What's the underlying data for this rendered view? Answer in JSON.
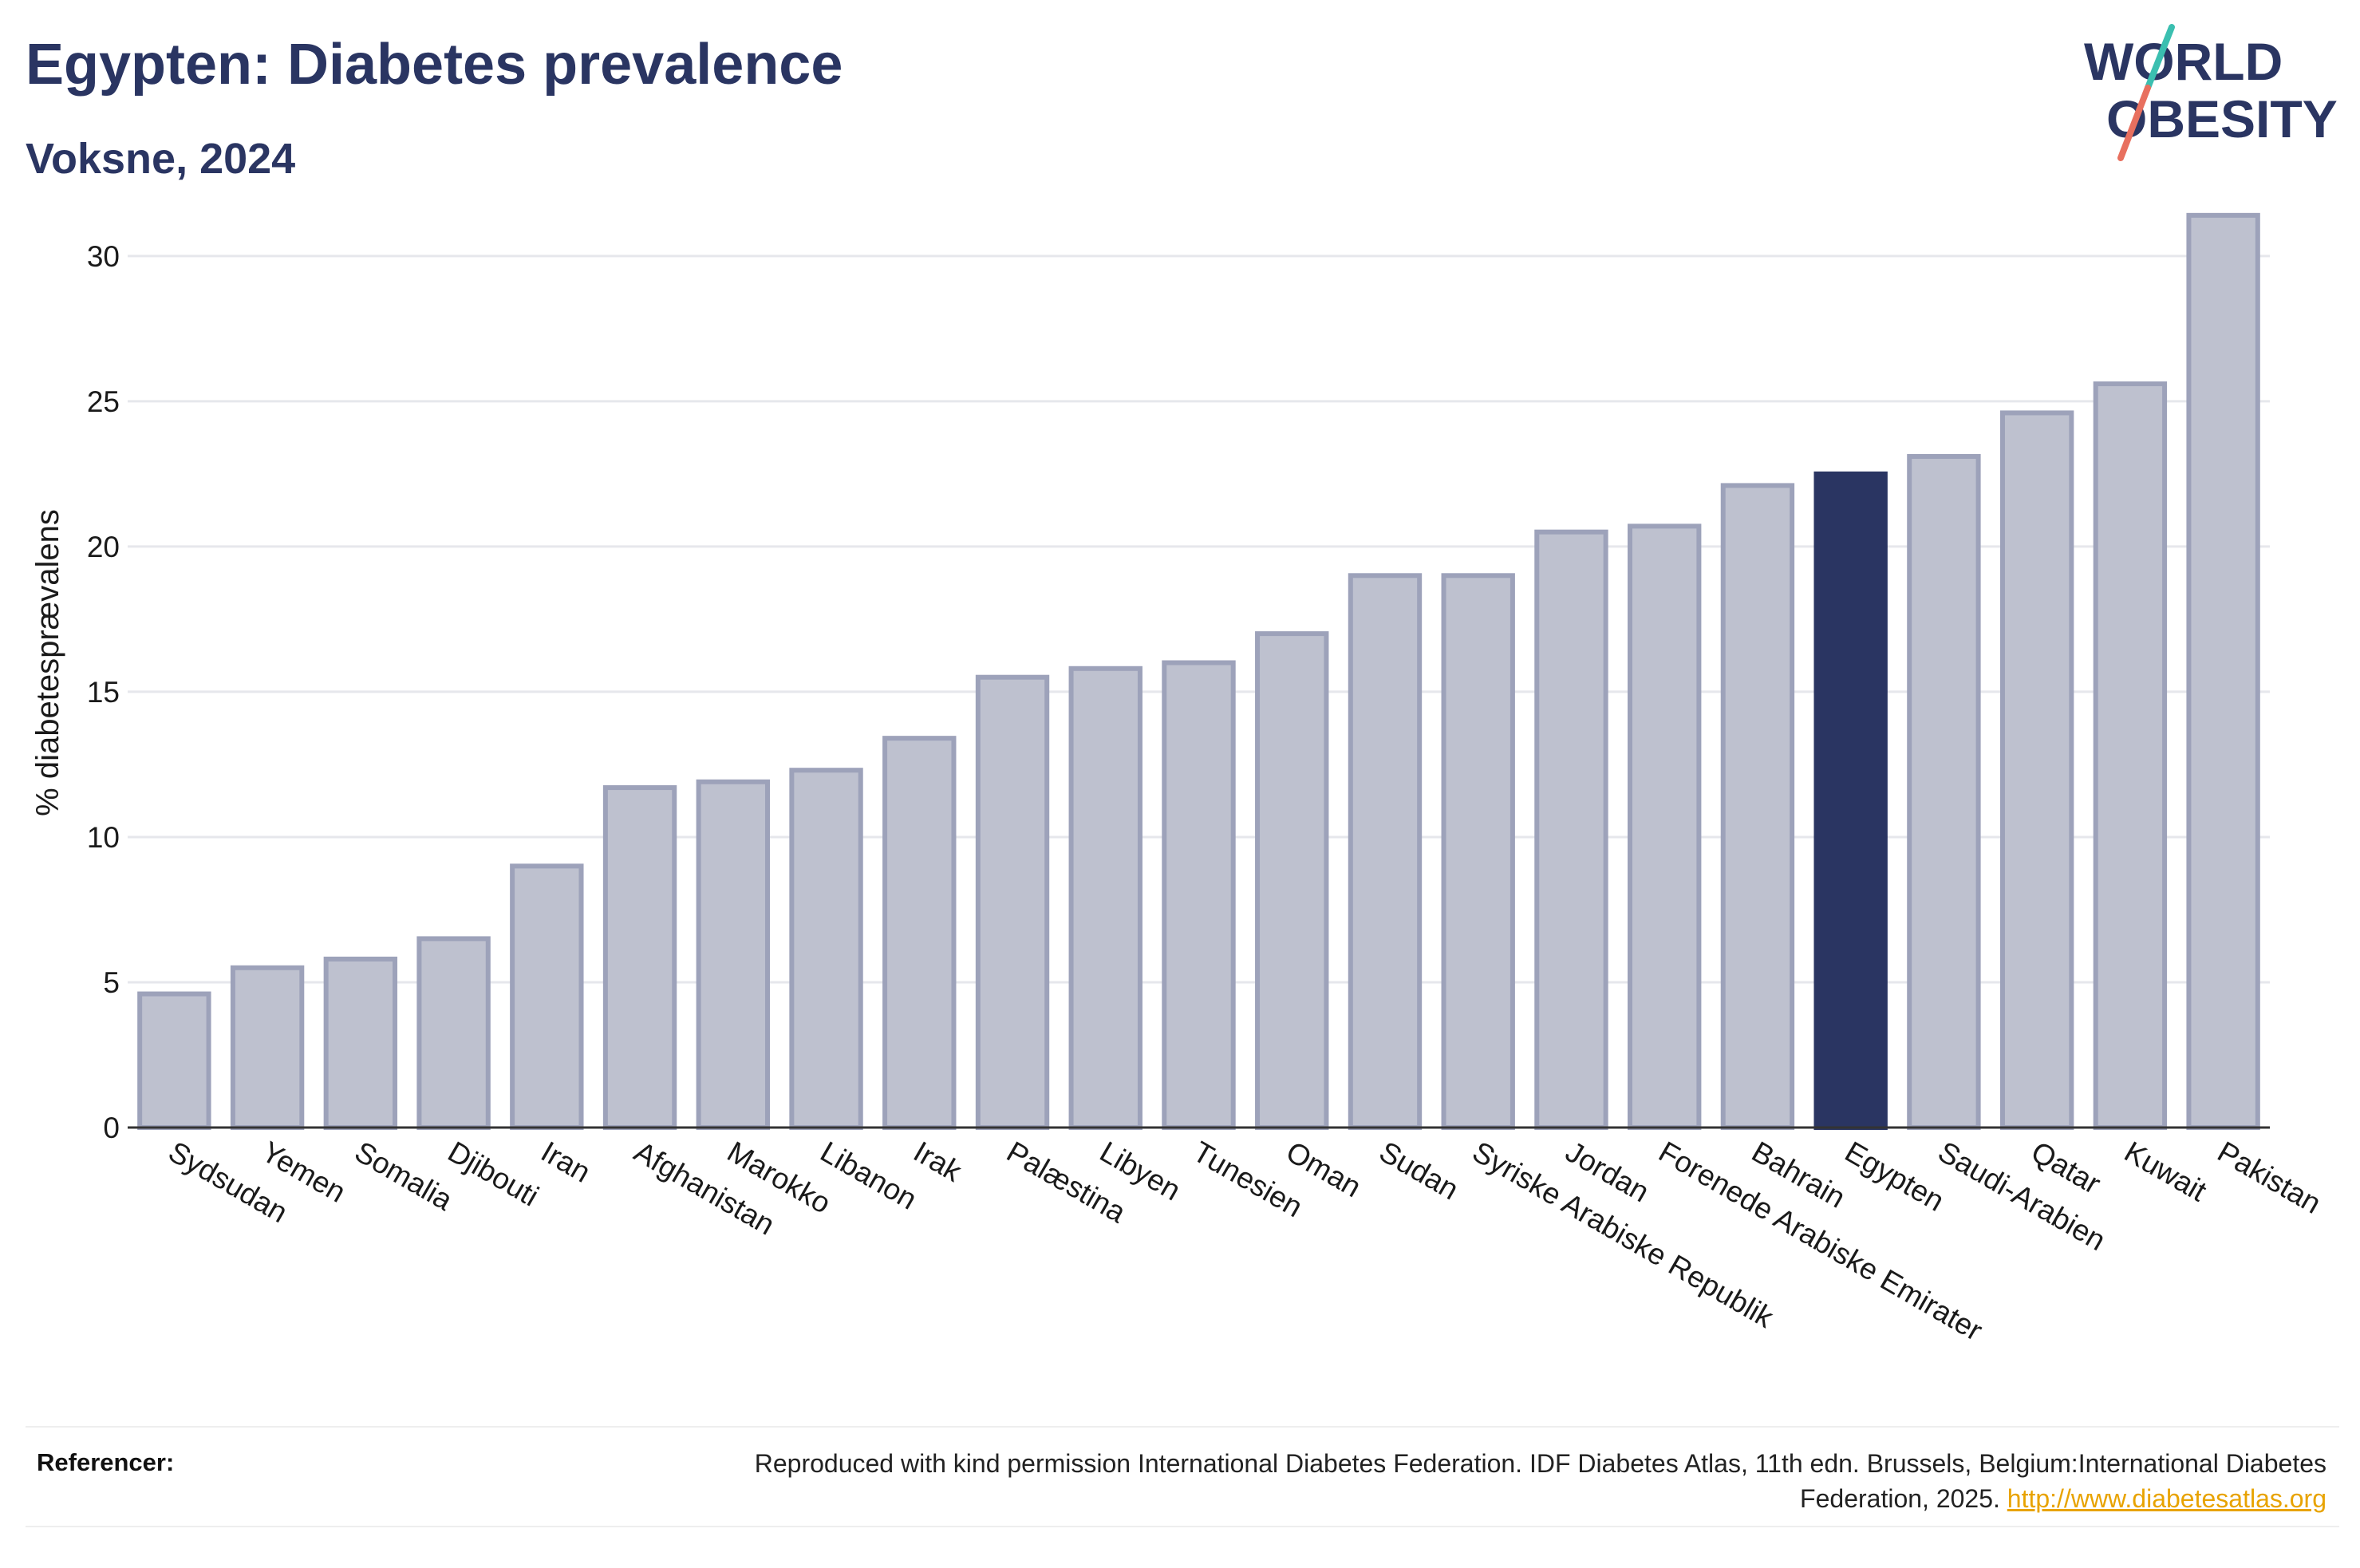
{
  "header": {
    "title": "Egypten: Diabetes prevalence",
    "subtitle": "Voksne, 2024"
  },
  "logo": {
    "line1": "WORLD",
    "line2": "OBESITY",
    "colors": {
      "text": "#2a3562",
      "slash_top": "#3bbfb0",
      "slash_bottom": "#e8705f"
    }
  },
  "chart_data": {
    "type": "bar",
    "ylabel": "% diabetesprævalens",
    "xlabel": "",
    "ylim": [
      0,
      32
    ],
    "yticks": [
      0,
      5,
      10,
      15,
      20,
      25,
      30
    ],
    "grid": true,
    "categories": [
      "Sydsudan",
      "Yemen",
      "Somalia",
      "Djibouti",
      "Iran",
      "Afghanistan",
      "Marokko",
      "Libanon",
      "Irak",
      "Palæstina",
      "Libyen",
      "Tunesien",
      "Oman",
      "Sudan",
      "Syriske Arabiske Republik",
      "Jordan",
      "Forenede Arabiske Emirater",
      "Bahrain",
      "Egypten",
      "Saudi-Arabien",
      "Qatar",
      "Kuwait",
      "Pakistan"
    ],
    "values": [
      4.6,
      5.5,
      5.8,
      6.5,
      9.0,
      11.7,
      11.9,
      12.3,
      13.4,
      15.5,
      15.8,
      16.0,
      17.0,
      19.0,
      19.0,
      20.5,
      20.7,
      22.1,
      22.5,
      23.1,
      24.6,
      25.6,
      31.4
    ],
    "highlight": "Egypten",
    "colors": {
      "bar": "#bec1cf",
      "bar_border": "#9da2ba",
      "highlight": "#2a3562",
      "grid": "#e6e7ec",
      "axis": "#333333"
    }
  },
  "footer": {
    "references_label": "Referencer:",
    "reference_text": "Reproduced with kind permission International Diabetes Federation. IDF Diabetes Atlas, 11th edn. Brussels, Belgium:International Diabetes Federation, 2025.",
    "reference_link": "http://www.diabetesatlas.org"
  }
}
